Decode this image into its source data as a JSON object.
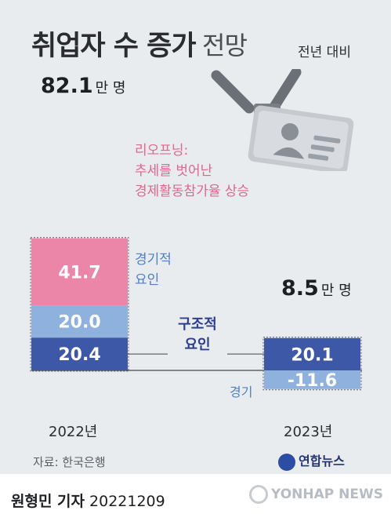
{
  "title": {
    "bold": "취업자 수 증가",
    "light": "전망"
  },
  "subtitle": "전년 대비",
  "chart_data": {
    "type": "bar",
    "stacked": true,
    "categories": [
      "2022년",
      "2023년"
    ],
    "totals": [
      {
        "value": "82.1",
        "unit": "만 명"
      },
      {
        "value": "8.5",
        "unit": "만 명"
      }
    ],
    "series": [
      {
        "name": "구조적 요인",
        "values": [
          20.4,
          20.1
        ],
        "color": "#3e58a8",
        "labels": [
          "20.4",
          "20.1"
        ]
      },
      {
        "name": "경기적 요인",
        "values": [
          20.0,
          -11.6
        ],
        "color": "#8fb1dd",
        "labels": [
          "20.0",
          "-11.6"
        ]
      },
      {
        "name": "리오프닝: 추세를 벗어난 경제활동참가율 상승",
        "values": [
          41.7,
          0
        ],
        "color": "#ec86a8",
        "labels": [
          "41.7",
          ""
        ]
      }
    ]
  },
  "annotations": {
    "reopening_title": "리오프닝:",
    "reopening_line1": "추세를 벗어난",
    "reopening_line2": "경제활동참가율 상승",
    "cyclical_line1": "경기적",
    "cyclical_line2": "요인",
    "structural_line1": "구조적",
    "structural_line2": "요인",
    "cyclical_2023": "경기"
  },
  "source": "자료: 한국은행",
  "logo": "연합뉴스",
  "byline": {
    "name": "원형민 기자",
    "date": "20221209"
  },
  "watermark": "YONHAP NEWS"
}
